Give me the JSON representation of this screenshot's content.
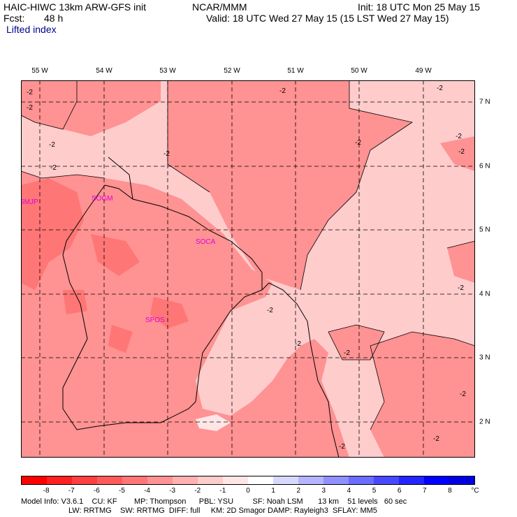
{
  "header": {
    "title": "HAIC-HIWC 13km ARW-GFS init",
    "org": "NCAR/MMM",
    "init": "Init: 18 UTC Mon 25 May 15",
    "fcst_label": "Fcst:",
    "fcst_value": "48 h",
    "valid": "Valid: 18 UTC Wed 27 May 15 (15 LST Wed 27 May 15)",
    "field": "Lifted index"
  },
  "map": {
    "lon_labels": [
      "55 W",
      "54 W",
      "53 W",
      "52 W",
      "51 W",
      "50 W",
      "49 W"
    ],
    "lat_labels": [
      "7 N",
      "6 N",
      "5 N",
      "4 N",
      "3 N",
      "2 N"
    ],
    "stations": [
      "SMJP",
      "SOGM",
      "SOCA",
      "SPOS"
    ],
    "contour_labels": [
      "-2",
      "-2",
      "-2",
      "-2",
      "-2",
      "-2",
      "-2",
      "-2",
      "-2",
      "-2",
      "-2",
      "-2",
      "-2",
      "-2",
      "-2",
      "-2",
      "-2"
    ]
  },
  "colorbar": {
    "ticks": [
      "-8",
      "-7",
      "-6",
      "-5",
      "-4",
      "-3",
      "-2",
      "-1",
      "0",
      "1",
      "2",
      "3",
      "4",
      "5",
      "6",
      "7",
      "8"
    ],
    "unit": "°C",
    "colors": [
      "#ff0000",
      "#ff2020",
      "#ff4040",
      "#ff5a5a",
      "#ff7676",
      "#ff9292",
      "#ffb0b0",
      "#ffcccc",
      "#ffe6e6",
      "#ffffff",
      "#d8d8ff",
      "#b4b4ff",
      "#9090ff",
      "#6c6cff",
      "#4848ff",
      "#2424ff",
      "#0000ff",
      "#0000e0"
    ]
  },
  "model_info": {
    "line1": "Model Info: V3.6.1    CU: KF        MP: Thompson      PBL: YSU         SF: Noah LSM       13 km    51 levels   60 sec",
    "line2": "LW: RRTMG    SW: RRTMG  DIFF: full     KM: 2D Smagor DAMP: Rayleigh3  SFLAY: MM5"
  }
}
